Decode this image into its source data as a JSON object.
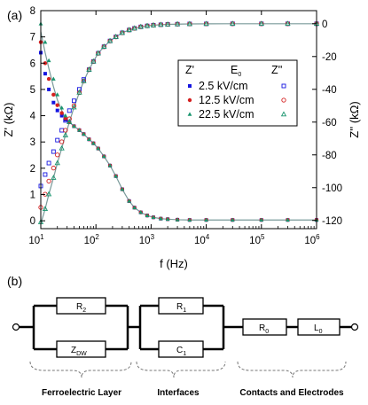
{
  "panel_a_label": "(a)",
  "panel_b_label": "(b)",
  "colors": {
    "s1": "#1515e0",
    "s2": "#d42020",
    "s3": "#18956e",
    "fit": "#7a9a9a"
  },
  "chart_data": {
    "type": "line",
    "xlabel": "f (Hz)",
    "ylabel_left": "Z' (kΩ)",
    "ylabel_right": "Z'' (kΩ)",
    "xscale": "log",
    "xlim": [
      10,
      1000000
    ],
    "ylim_left": [
      -0.3,
      8
    ],
    "ylim_right": [
      -125,
      8
    ],
    "x_ticks": [
      {
        "v": 10,
        "base": "10",
        "exp": "1"
      },
      {
        "v": 100,
        "base": "10",
        "exp": "2"
      },
      {
        "v": 1000,
        "base": "10",
        "exp": "3"
      },
      {
        "v": 10000,
        "base": "10",
        "exp": "4"
      },
      {
        "v": 100000,
        "base": "10",
        "exp": "5"
      },
      {
        "v": 1000000,
        "base": "10",
        "exp": "6"
      }
    ],
    "y_left_ticks": [
      0,
      1,
      2,
      3,
      4,
      5,
      6,
      7,
      8
    ],
    "y_right_ticks": [
      0,
      -20,
      -40,
      -60,
      -80,
      -100,
      -120
    ],
    "legend": {
      "placement": "top-right",
      "header_left": "Z'",
      "header_mid": "E",
      "header_mid_sub": "0",
      "header_right": "Z''",
      "entries": [
        "2.5 kV/cm",
        "12.5 kV/cm",
        "22.5 kV/cm"
      ]
    },
    "x": [
      10,
      12,
      14,
      17,
      20,
      24,
      28,
      33,
      40,
      50,
      60,
      75,
      90,
      110,
      140,
      180,
      230,
      300,
      400,
      500,
      650,
      850,
      1100,
      1500,
      2000,
      3000,
      5000,
      10000,
      30000,
      100000,
      300000,
      1000000
    ],
    "zprime_fit": [
      7.2,
      6.4,
      5.8,
      5.1,
      4.6,
      4.2,
      3.9,
      3.75,
      3.6,
      3.45,
      3.3,
      3.1,
      2.95,
      2.75,
      2.45,
      2.1,
      1.7,
      1.2,
      0.75,
      0.5,
      0.32,
      0.2,
      0.13,
      0.08,
      0.06,
      0.04,
      0.03,
      0.03,
      0.03,
      0.03,
      0.03,
      0.03
    ],
    "zdprime_fit": [
      -122,
      -113,
      -104,
      -94,
      -85,
      -76,
      -68,
      -60,
      -51,
      -42,
      -35,
      -28,
      -23,
      -18,
      -14,
      -10.5,
      -8,
      -5.5,
      -3.8,
      -2.8,
      -1.9,
      -1.3,
      -0.9,
      -0.6,
      -0.4,
      -0.25,
      -0.1,
      -0.05,
      0,
      0,
      0,
      0
    ],
    "series": [
      {
        "name": "2.5 kV/cm",
        "zprime": [
          6.4,
          5.6,
          5.0,
          4.5,
          4.2,
          4.0,
          3.85,
          3.75,
          3.6,
          3.45,
          3.3,
          3.1,
          2.95,
          2.75,
          2.45,
          2.1,
          1.7,
          1.2,
          0.75,
          0.5,
          0.32,
          0.2,
          0.13,
          0.08,
          0.06,
          0.04,
          0.03,
          0.03,
          0.03,
          0.03,
          0.03,
          0.03
        ],
        "zdprime": [
          -99,
          -92,
          -85,
          -78,
          -71,
          -65,
          -59,
          -53,
          -47,
          -40,
          -34,
          -28,
          -23,
          -18,
          -14,
          -10.5,
          -8,
          -5.5,
          -3.8,
          -2.8,
          -1.9,
          -1.3,
          -0.9,
          -0.6,
          -0.4,
          -0.25,
          -0.1,
          -0.05,
          0,
          0,
          0,
          0
        ]
      },
      {
        "name": "12.5 kV/cm",
        "zprime": [
          6.8,
          6.0,
          5.4,
          4.8,
          4.4,
          4.1,
          3.9,
          3.75,
          3.6,
          3.45,
          3.3,
          3.1,
          2.95,
          2.75,
          2.45,
          2.1,
          1.7,
          1.2,
          0.75,
          0.5,
          0.32,
          0.2,
          0.13,
          0.08,
          0.06,
          0.04,
          0.03,
          0.03,
          0.03,
          0.03,
          0.03,
          0.03
        ],
        "zdprime": [
          -112,
          -104,
          -96,
          -88,
          -80,
          -72,
          -65,
          -58,
          -50,
          -42,
          -35,
          -28,
          -23,
          -18,
          -14,
          -10.5,
          -8,
          -5.5,
          -3.8,
          -2.8,
          -1.9,
          -1.3,
          -0.9,
          -0.6,
          -0.4,
          -0.25,
          -0.1,
          -0.05,
          0,
          0,
          0,
          0
        ]
      },
      {
        "name": "22.5 kV/cm",
        "zprime": [
          7.5,
          6.8,
          6.1,
          5.4,
          4.8,
          4.3,
          4.0,
          3.8,
          3.6,
          3.45,
          3.3,
          3.1,
          2.95,
          2.75,
          2.45,
          2.1,
          1.7,
          1.2,
          0.75,
          0.5,
          0.32,
          0.2,
          0.13,
          0.08,
          0.06,
          0.04,
          0.03,
          0.03,
          0.03,
          0.03,
          0.03,
          0.03
        ],
        "zdprime": [
          -121,
          -113,
          -104,
          -94,
          -85,
          -76,
          -68,
          -60,
          -51,
          -42,
          -35,
          -28,
          -23,
          -18,
          -14,
          -10.5,
          -8,
          -5.5,
          -3.8,
          -2.8,
          -1.9,
          -1.3,
          -0.9,
          -0.6,
          -0.4,
          -0.25,
          -0.1,
          -0.05,
          0,
          0,
          0,
          0
        ]
      }
    ]
  },
  "circuit": {
    "r2": {
      "base": "R",
      "sub": "2"
    },
    "zdw": {
      "base": "Z",
      "sub": "DW"
    },
    "r1": {
      "base": "R",
      "sub": "1"
    },
    "c1": {
      "base": "C",
      "sub": "1"
    },
    "r0": {
      "base": "R",
      "sub": "0"
    },
    "l0": {
      "base": "L",
      "sub": "0"
    },
    "groups": [
      "Ferroelectric  Layer",
      "Interfaces",
      "Contacts and Electrodes"
    ]
  }
}
